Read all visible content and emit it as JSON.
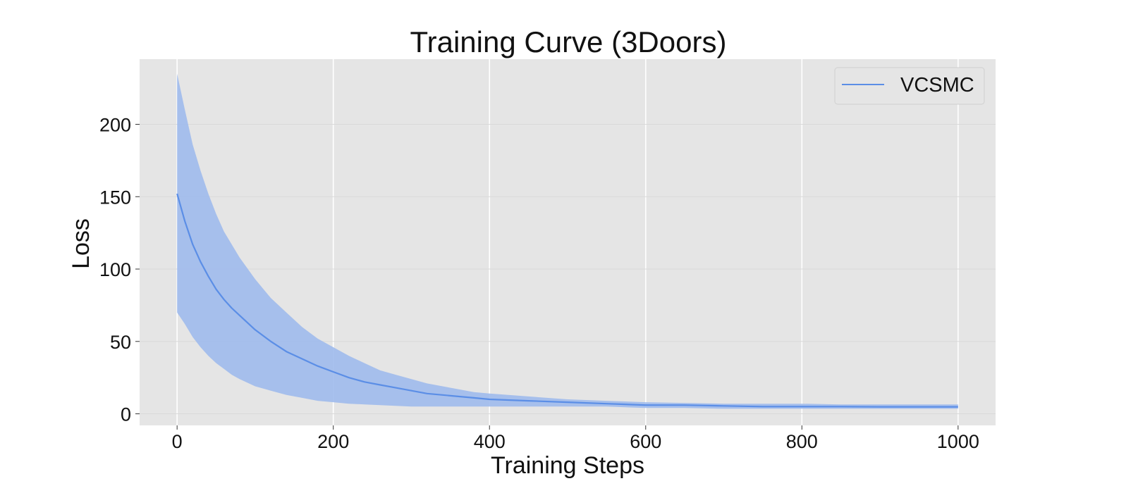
{
  "chart_data": {
    "type": "line",
    "title": "Training Curve (3Doors)",
    "xlabel": "Training Steps",
    "ylabel": "Loss",
    "xlim": [
      -48,
      1048
    ],
    "ylim": [
      -8,
      245
    ],
    "x_ticks": [
      0,
      200,
      400,
      600,
      800,
      1000
    ],
    "y_ticks": [
      0,
      50,
      100,
      150,
      200
    ],
    "x_tick_labels": [
      "0",
      "200",
      "400",
      "600",
      "800",
      "1000"
    ],
    "y_tick_labels": [
      "0",
      "50",
      "100",
      "150",
      "200"
    ],
    "grid": true,
    "legend_position": "top-right",
    "colors": {
      "line": "#5b8ee6",
      "band": "#9fbaec",
      "background": "#e5e5e5",
      "grid": "#ffffff"
    },
    "series": [
      {
        "name": "VCSMC",
        "x": [
          0,
          10,
          20,
          30,
          40,
          50,
          60,
          70,
          80,
          100,
          120,
          140,
          160,
          180,
          200,
          220,
          240,
          260,
          280,
          300,
          320,
          340,
          360,
          380,
          400,
          450,
          500,
          550,
          600,
          650,
          700,
          750,
          800,
          850,
          900,
          950,
          1000
        ],
        "mean": [
          152,
          133,
          117,
          105,
          95,
          86,
          79,
          73,
          68,
          58,
          50,
          43,
          38,
          33,
          29,
          25,
          22,
          20,
          18,
          16,
          14,
          13,
          12,
          11,
          10,
          9,
          8,
          7,
          6,
          6,
          5.5,
          5,
          5,
          5,
          4.8,
          4.8,
          4.8
        ],
        "upper": [
          235,
          210,
          186,
          168,
          152,
          138,
          126,
          117,
          108,
          93,
          80,
          70,
          60,
          52,
          46,
          40,
          35,
          30,
          27,
          24,
          21,
          19,
          17,
          15,
          14,
          12,
          10,
          9,
          8,
          7.5,
          7,
          7,
          7,
          6.5,
          6.5,
          6.5,
          6.5
        ],
        "lower": [
          70,
          62,
          53,
          46,
          40,
          35,
          31,
          27,
          24,
          19,
          16,
          13,
          11,
          9,
          8,
          7,
          6.5,
          6,
          5.5,
          5,
          5,
          5,
          5,
          5,
          5,
          5,
          5,
          5,
          4,
          4,
          3.5,
          3.5,
          3.5,
          3.5,
          3.5,
          3.5,
          3.5
        ]
      }
    ]
  }
}
